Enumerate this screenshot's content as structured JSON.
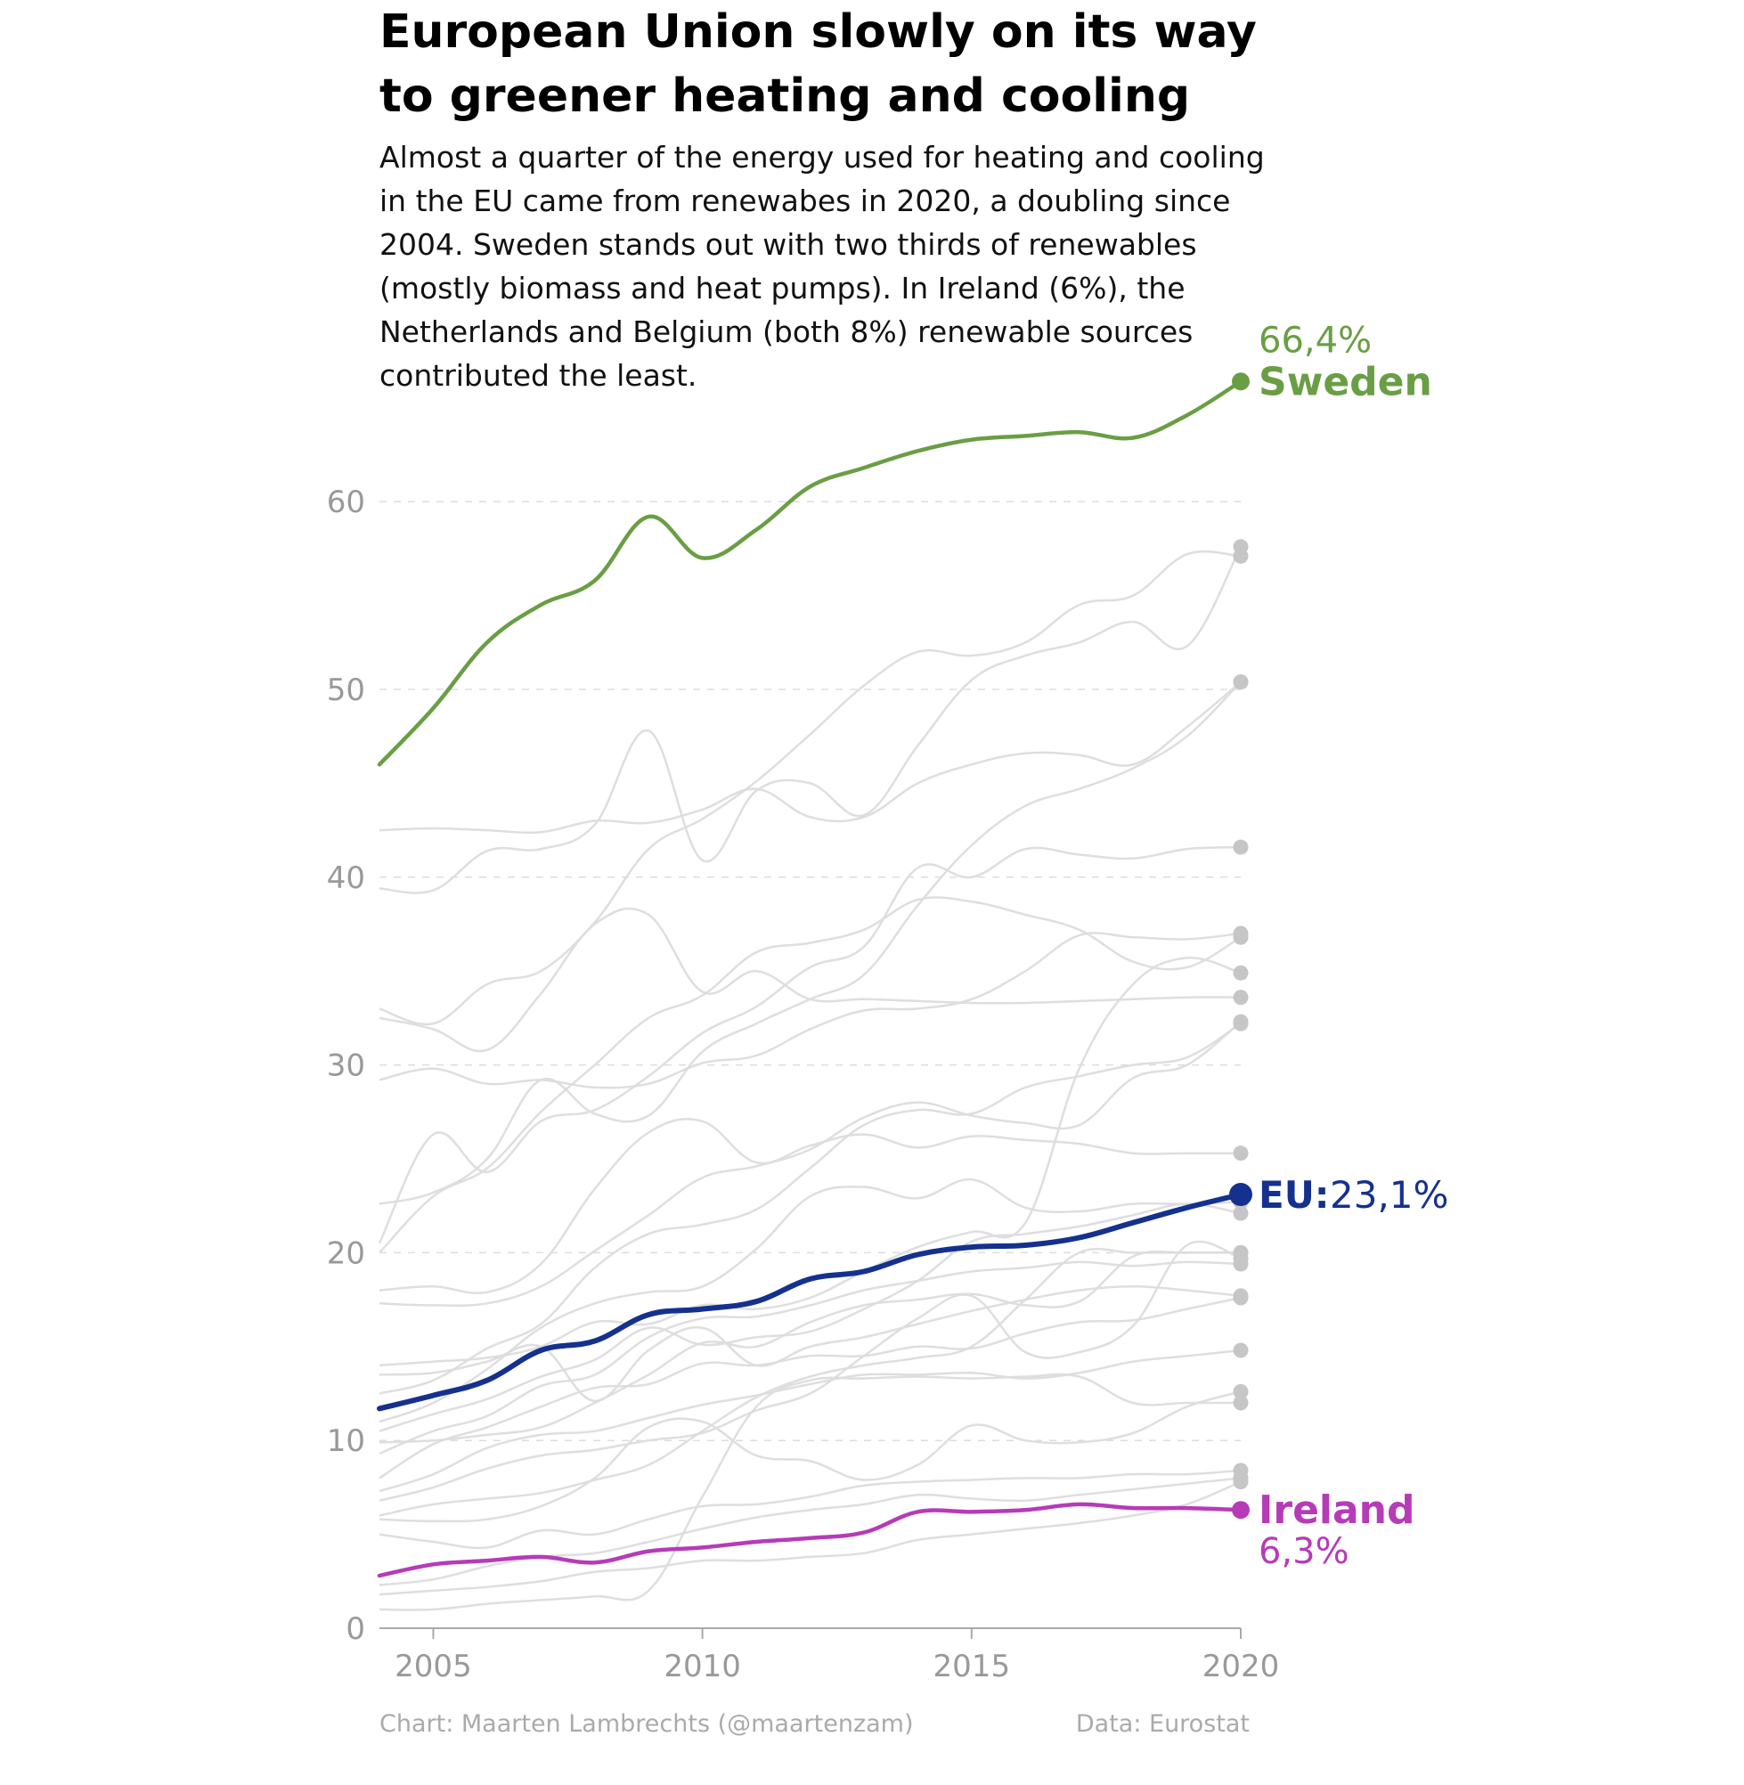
{
  "title": "European Union slowly on its way to greener heating and cooling",
  "subtitle": "Almost a quarter of the energy used for heating and cooling in the EU came from renewabes in 2020, a doubling since 2004. Sweden stands out with two thirds of renewables (mostly biomass and heat pumps). In Ireland (6%), the Netherlands and Belgium (both 8%) renewable sources contributed the least.",
  "footer": {
    "credit": "Chart: Maarten Lambrechts (@maartenzam)",
    "source": "Data: Eurostat"
  },
  "colors": {
    "sweden": "#6a9e45",
    "eu": "#15318e",
    "ireland": "#b63bb8",
    "other": "#dcdcdc",
    "other_dot": "#c6c6c6",
    "axis_text": "#999999",
    "grid": "#dddddd"
  },
  "chart_data": {
    "type": "line",
    "title": "European Union slowly on its way to greener heating and cooling",
    "xlabel": "",
    "ylabel": "",
    "xlim": [
      2004,
      2020
    ],
    "ylim": [
      0,
      66.4
    ],
    "x_ticks": [
      2005,
      2010,
      2015,
      2020
    ],
    "y_ticks": [
      0,
      10,
      20,
      30,
      40,
      50,
      60
    ],
    "grid": "horizontal dashed",
    "x": [
      2004,
      2005,
      2006,
      2007,
      2008,
      2009,
      2010,
      2011,
      2012,
      2013,
      2014,
      2015,
      2016,
      2017,
      2018,
      2019,
      2020
    ],
    "highlighted": [
      {
        "name": "Sweden",
        "value_label": "66,4%",
        "label_order": "value-above-name",
        "color": "#6a9e45",
        "values": [
          46.0,
          49.0,
          52.5,
          54.5,
          55.8,
          59.2,
          57.0,
          58.5,
          60.8,
          61.8,
          62.7,
          63.3,
          63.5,
          63.7,
          63.4,
          64.6,
          66.4
        ]
      },
      {
        "name": "EU:",
        "value_label": "23,1%",
        "label_order": "inline",
        "color": "#15318e",
        "values": [
          11.7,
          12.4,
          13.2,
          14.8,
          15.3,
          16.7,
          17.0,
          17.4,
          18.6,
          19.0,
          19.9,
          20.3,
          20.4,
          20.8,
          21.6,
          22.4,
          23.1
        ]
      },
      {
        "name": "Ireland",
        "value_label": "6,3%",
        "label_order": "name-above-value",
        "color": "#b63bb8",
        "values": [
          2.8,
          3.4,
          3.6,
          3.8,
          3.5,
          4.1,
          4.3,
          4.6,
          4.8,
          5.1,
          6.2,
          6.2,
          6.3,
          6.6,
          6.4,
          6.4,
          6.3
        ]
      }
    ],
    "other_series": [
      {
        "values": [
          42.5,
          42.6,
          42.5,
          42.4,
          43.0,
          42.9,
          43.6,
          44.7,
          43.2,
          43.2,
          45.0,
          46.0,
          46.6,
          46.5,
          46.0,
          48.0,
          50.4
        ]
      },
      {
        "values": [
          39.4,
          39.3,
          41.4,
          41.5,
          42.8,
          47.8,
          40.9,
          44.6,
          45.0,
          43.3,
          47.0,
          50.5,
          51.8,
          52.5,
          53.6,
          52.3,
          57.6
        ]
      },
      {
        "values": [
          32.5,
          31.9,
          30.8,
          33.8,
          37.5,
          38.0,
          33.9,
          35.0,
          33.5,
          33.5,
          33.4,
          33.3,
          33.3,
          33.4,
          33.5,
          33.6,
          33.6
        ]
      },
      {
        "values": [
          33.0,
          32.2,
          34.3,
          35.0,
          37.6,
          41.5,
          43.1,
          45.1,
          47.6,
          50.2,
          52.0,
          51.8,
          52.5,
          54.5,
          55.0,
          57.2,
          57.1
        ]
      },
      {
        "values": [
          29.2,
          29.8,
          29.0,
          29.2,
          28.8,
          29.0,
          30.1,
          30.5,
          31.9,
          32.9,
          33.0,
          33.5,
          35.0,
          36.9,
          36.8,
          36.7,
          37.0
        ]
      },
      {
        "values": [
          20.0,
          23.0,
          24.5,
          27.5,
          30.0,
          32.5,
          33.7,
          36.0,
          36.5,
          37.2,
          38.8,
          38.7,
          38.0,
          37.2,
          35.5,
          35.2,
          36.8
        ]
      },
      {
        "values": [
          20.5,
          26.3,
          24.3,
          27.0,
          27.6,
          29.4,
          31.7,
          33.1,
          35.2,
          36.3,
          40.5,
          40.0,
          41.5,
          41.2,
          41.0,
          41.5,
          41.6
        ]
      },
      {
        "values": [
          22.6,
          23.2,
          25.0,
          29.2,
          27.4,
          27.3,
          30.7,
          32.2,
          33.5,
          34.8,
          38.5,
          41.7,
          43.8,
          44.7,
          45.8,
          47.5,
          50.4
        ]
      },
      {
        "values": [
          18.0,
          18.2,
          17.9,
          19.4,
          23.4,
          26.4,
          27.0,
          24.8,
          25.7,
          26.3,
          25.6,
          26.2,
          26.0,
          25.8,
          25.3,
          25.3,
          25.3
        ]
      },
      {
        "values": [
          17.3,
          17.2,
          17.3,
          18.2,
          20.1,
          22.0,
          24.0,
          24.6,
          25.5,
          27.2,
          28.0,
          27.3,
          26.9,
          26.8,
          29.3,
          30.0,
          32.3
        ]
      },
      {
        "values": [
          12.5,
          13.2,
          14.9,
          16.2,
          19.2,
          21.0,
          21.5,
          22.3,
          24.5,
          26.8,
          27.6,
          27.4,
          28.8,
          29.4,
          30.0,
          30.4,
          32.2
        ]
      },
      {
        "values": [
          14.0,
          14.2,
          14.4,
          15.0,
          16.3,
          16.2,
          17.2,
          17.0,
          17.6,
          19.0,
          20.3,
          21.1,
          21.6,
          29.8,
          34.3,
          35.7,
          34.9
        ]
      },
      {
        "values": [
          11.0,
          12.0,
          13.8,
          16.0,
          17.3,
          17.9,
          18.2,
          20.2,
          23.0,
          23.5,
          22.9,
          23.9,
          22.4,
          22.2,
          22.6,
          22.6,
          22.7
        ]
      },
      {
        "values": [
          10.5,
          11.4,
          12.2,
          13.4,
          14.3,
          16.0,
          15.1,
          15.5,
          15.8,
          17.0,
          18.5,
          20.6,
          21.0,
          21.4,
          22.0,
          22.6,
          22.1
        ]
      },
      {
        "values": [
          9.9,
          10.0,
          10.3,
          10.7,
          12.0,
          13.5,
          15.2,
          15.0,
          16.3,
          17.2,
          17.5,
          17.8,
          17.2,
          17.4,
          19.8,
          20.0,
          20.0
        ]
      },
      {
        "values": [
          9.3,
          10.5,
          11.3,
          12.9,
          13.5,
          15.5,
          16.5,
          16.6,
          17.2,
          18.0,
          18.5,
          19.0,
          19.2,
          19.5,
          19.3,
          19.5,
          19.4
        ]
      },
      {
        "values": [
          13.5,
          13.6,
          14.2,
          15.0,
          12.1,
          14.8,
          16.0,
          14.0,
          15.0,
          15.5,
          16.2,
          16.9,
          17.5,
          18.0,
          18.2,
          18.0,
          17.7
        ]
      },
      {
        "values": [
          8.0,
          9.8,
          10.7,
          11.8,
          12.8,
          13.0,
          14.1,
          14.0,
          14.5,
          14.5,
          15.0,
          14.9,
          15.7,
          16.3,
          16.4,
          17.0,
          17.6
        ]
      },
      {
        "values": [
          7.3,
          8.2,
          9.6,
          10.3,
          10.5,
          11.2,
          11.9,
          12.4,
          13.0,
          13.5,
          13.5,
          13.6,
          13.3,
          13.6,
          14.2,
          14.5,
          14.8
        ]
      },
      {
        "values": [
          6.8,
          7.5,
          8.5,
          9.2,
          9.5,
          10.0,
          10.4,
          11.6,
          12.5,
          14.5,
          16.5,
          17.7,
          14.7,
          14.7,
          16.1,
          20.4,
          19.7
        ]
      },
      {
        "values": [
          6.0,
          6.6,
          6.9,
          7.2,
          7.9,
          8.7,
          10.5,
          12.3,
          13.4,
          14.0,
          14.4,
          15.0,
          17.5,
          20.0,
          20.0,
          20.0,
          20.0
        ]
      },
      {
        "values": [
          5.8,
          5.7,
          5.8,
          6.5,
          8.0,
          10.7,
          11.0,
          9.2,
          8.9,
          7.9,
          8.7,
          10.8,
          10.0,
          9.9,
          10.4,
          11.8,
          12.6
        ]
      },
      {
        "values": [
          5.0,
          4.6,
          4.3,
          5.2,
          5.0,
          5.8,
          6.5,
          6.6,
          7.0,
          7.6,
          7.8,
          7.9,
          8.0,
          8.0,
          8.2,
          8.2,
          8.4
        ]
      },
      {
        "values": [
          2.3,
          2.6,
          3.3,
          3.8,
          4.0,
          4.6,
          5.3,
          5.9,
          6.3,
          6.6,
          7.1,
          6.9,
          6.8,
          7.1,
          7.4,
          7.7,
          8.0
        ]
      },
      {
        "values": [
          1.8,
          2.0,
          2.2,
          2.5,
          3.0,
          3.2,
          3.6,
          3.6,
          3.8,
          4.0,
          4.7,
          5.0,
          5.3,
          5.6,
          6.0,
          6.6,
          7.8
        ]
      },
      {
        "values": [
          1.0,
          1.0,
          1.3,
          1.5,
          1.7,
          2.0,
          7.0,
          11.8,
          13.2,
          13.3,
          13.4,
          13.3,
          13.4,
          13.4,
          12.0,
          12.0,
          12.0
        ]
      }
    ]
  }
}
